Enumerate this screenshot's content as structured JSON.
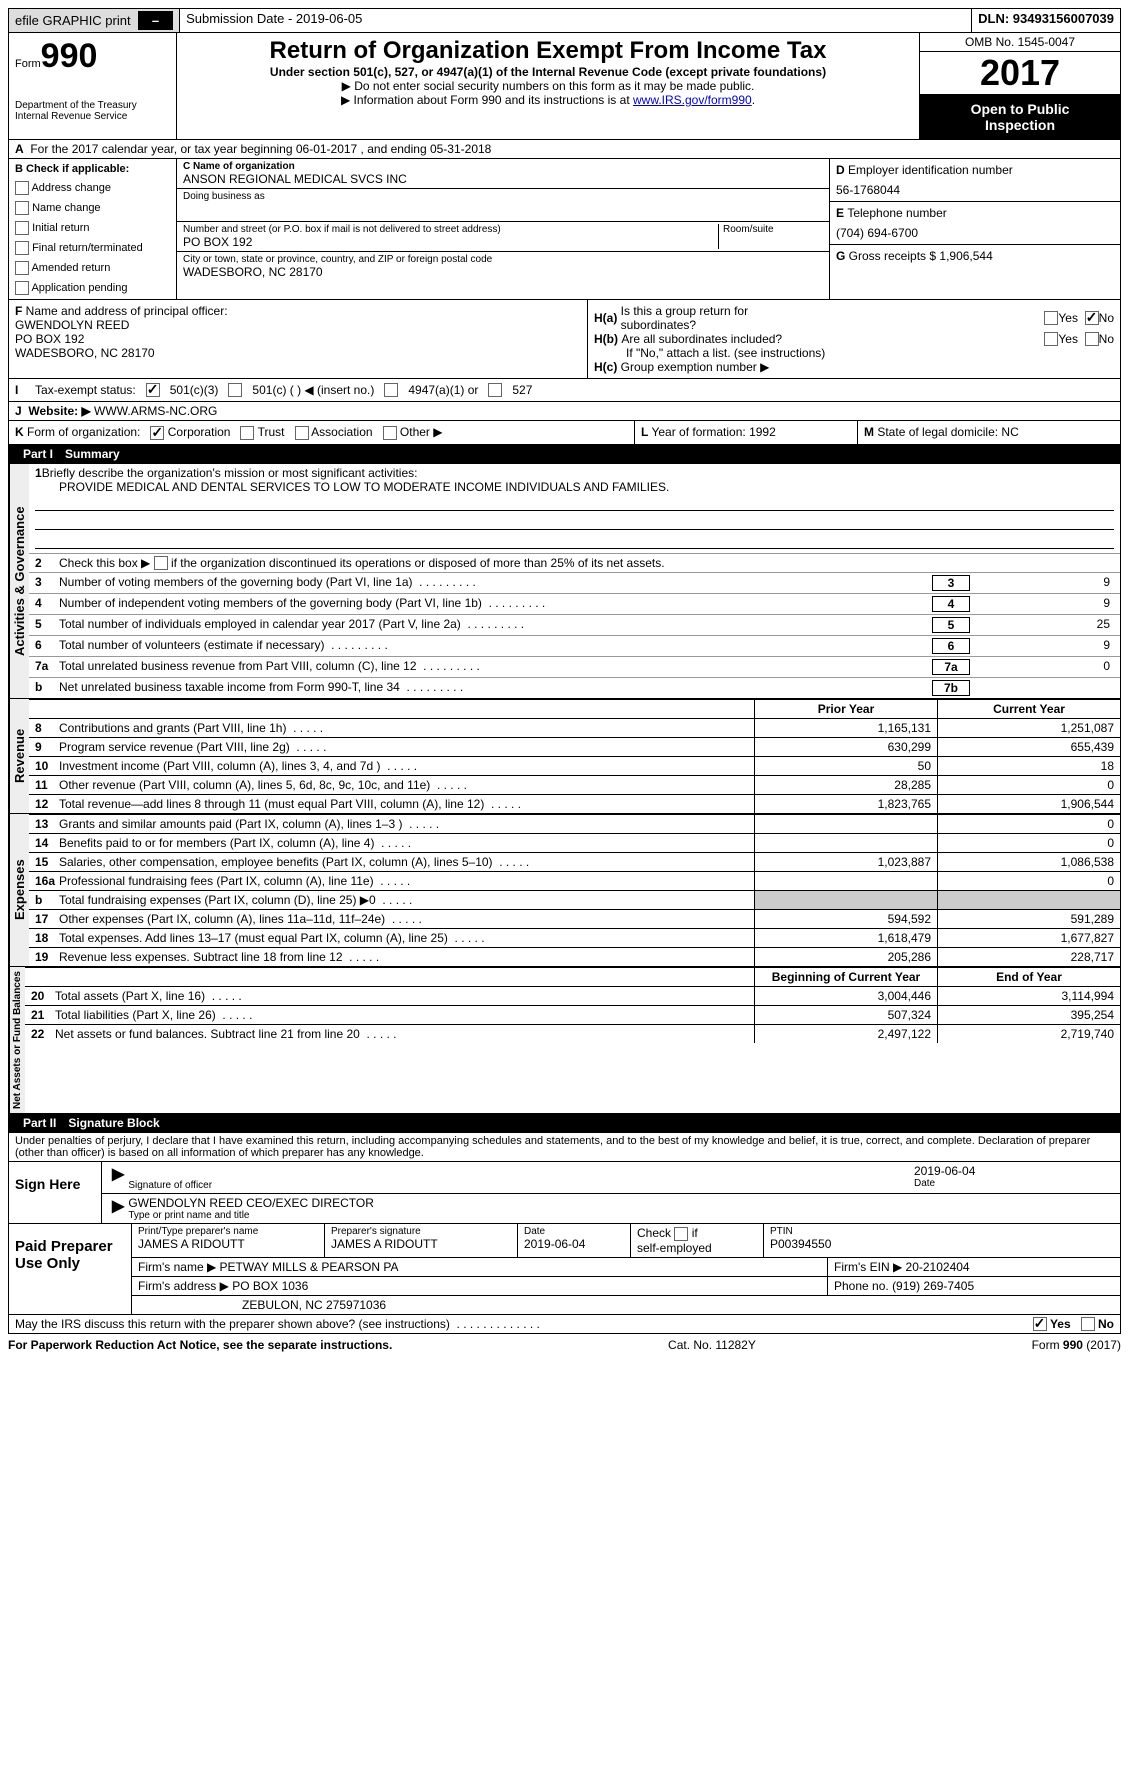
{
  "colors": {
    "black": "#000000",
    "headerBg": "#dddddd",
    "sideBg": "#eeeeee",
    "grey": "#cccccc",
    "link": "#0000cc"
  },
  "top": {
    "efile": "efile GRAPHIC print",
    "submission": "Submission Date - 2019-06-05",
    "dln": "DLN: 93493156007039"
  },
  "hdr": {
    "formWord": "Form",
    "formNo": "990",
    "dept": "Department of the Treasury",
    "irs": "Internal Revenue Service",
    "title": "Return of Organization Exempt From Income Tax",
    "sub": "Under section 501(c), 527, or 4947(a)(1) of the Internal Revenue Code (except private foundations)",
    "note1": "▶ Do not enter social security numbers on this form as it may be made public.",
    "note2": "▶ Information about Form 990 and its instructions is at ",
    "note2link": "www.IRS.gov/form990",
    "note2end": ".",
    "omb": "OMB No. 1545-0047",
    "year": "2017",
    "inspect1": "Open to Public",
    "inspect2": "Inspection"
  },
  "a": {
    "text": "For the 2017 calendar year, or tax year beginning 06-01-2017   , and ending 05-31-2018"
  },
  "b": {
    "hdr": "Check if applicable:",
    "items": [
      "Address change",
      "Name change",
      "Initial return",
      "Final return/terminated",
      "Amended return",
      "Application pending"
    ]
  },
  "c": {
    "orgLabel": "Name of organization",
    "orgName": "ANSON REGIONAL MEDICAL SVCS INC",
    "dba": "Doing business as",
    "addrLabel": "Number and street (or P.O. box if mail is not delivered to street address)",
    "room": "Room/suite",
    "addr": "PO BOX 192",
    "cityLabel": "City or town, state or province, country, and ZIP or foreign postal code",
    "city": "WADESBORO, NC  28170"
  },
  "d": {
    "einLabel": "Employer identification number",
    "ein": "56-1768044",
    "telLabel": "Telephone number",
    "tel": "(704) 694-6700",
    "grossLabel": "Gross receipts $",
    "gross": "1,906,544"
  },
  "f": {
    "label": "Name and address of principal officer:",
    "name": "GWENDOLYN REED",
    "addr": "PO BOX 192",
    "city": "WADESBORO, NC  28170"
  },
  "h": {
    "a": "Is this a group return for",
    "a2": "subordinates?",
    "b": "Are all subordinates included?",
    "bNote": "If \"No,\" attach a list. (see instructions)",
    "c": "Group exemption number ▶",
    "yes": "Yes",
    "no": "No"
  },
  "i": {
    "label": "Tax-exempt status:",
    "opts": [
      "501(c)(3)",
      "501(c) (   ) ◀ (insert no.)",
      "4947(a)(1) or",
      "527"
    ]
  },
  "j": {
    "label": "Website: ▶",
    "val": "WWW.ARMS-NC.ORG"
  },
  "k": {
    "label": "Form of organization:",
    "opts": [
      "Corporation",
      "Trust",
      "Association",
      "Other ▶"
    ],
    "l": "Year of formation: 1992",
    "m": "State of legal domicile: NC"
  },
  "part1": {
    "title": "Part I",
    "name": "Summary",
    "q1": "Briefly describe the organization's mission or most significant activities:",
    "mission": "PROVIDE MEDICAL AND DENTAL SERVICES TO LOW TO MODERATE INCOME INDIVIDUALS AND FAMILIES.",
    "q2": "Check this box ▶",
    "q2b": "if the organization discontinued its operations or disposed of more than 25% of its net assets.",
    "lines": [
      {
        "n": "3",
        "t": "Number of voting members of the governing body (Part VI, line 1a)",
        "b": "3",
        "v": "9"
      },
      {
        "n": "4",
        "t": "Number of independent voting members of the governing body (Part VI, line 1b)",
        "b": "4",
        "v": "9"
      },
      {
        "n": "5",
        "t": "Total number of individuals employed in calendar year 2017 (Part V, line 2a)",
        "b": "5",
        "v": "25"
      },
      {
        "n": "6",
        "t": "Total number of volunteers (estimate if necessary)",
        "b": "6",
        "v": "9"
      },
      {
        "n": "7a",
        "t": "Total unrelated business revenue from Part VIII, column (C), line 12",
        "b": "7a",
        "v": "0"
      },
      {
        "n": "b",
        "t": "Net unrelated business taxable income from Form 990-T, line 34",
        "b": "7b",
        "v": ""
      }
    ],
    "revHdr": {
      "c1": "Prior Year",
      "c2": "Current Year"
    },
    "rev": [
      {
        "n": "8",
        "t": "Contributions and grants (Part VIII, line 1h)",
        "c1": "1,165,131",
        "c2": "1,251,087"
      },
      {
        "n": "9",
        "t": "Program service revenue (Part VIII, line 2g)",
        "c1": "630,299",
        "c2": "655,439"
      },
      {
        "n": "10",
        "t": "Investment income (Part VIII, column (A), lines 3, 4, and 7d )",
        "c1": "50",
        "c2": "18"
      },
      {
        "n": "11",
        "t": "Other revenue (Part VIII, column (A), lines 5, 6d, 8c, 9c, 10c, and 11e)",
        "c1": "28,285",
        "c2": "0"
      },
      {
        "n": "12",
        "t": "Total revenue—add lines 8 through 11 (must equal Part VIII, column (A), line 12)",
        "c1": "1,823,765",
        "c2": "1,906,544"
      }
    ],
    "exp": [
      {
        "n": "13",
        "t": "Grants and similar amounts paid (Part IX, column (A), lines 1–3 )",
        "c1": "",
        "c2": "0"
      },
      {
        "n": "14",
        "t": "Benefits paid to or for members (Part IX, column (A), line 4)",
        "c1": "",
        "c2": "0"
      },
      {
        "n": "15",
        "t": "Salaries, other compensation, employee benefits (Part IX, column (A), lines 5–10)",
        "c1": "1,023,887",
        "c2": "1,086,538"
      },
      {
        "n": "16a",
        "t": "Professional fundraising fees (Part IX, column (A), line 11e)",
        "c1": "",
        "c2": "0"
      },
      {
        "n": "b",
        "t": "Total fundraising expenses (Part IX, column (D), line 25) ▶0",
        "c1": "grey",
        "c2": "grey"
      },
      {
        "n": "17",
        "t": "Other expenses (Part IX, column (A), lines 11a–11d, 11f–24e)",
        "c1": "594,592",
        "c2": "591,289"
      },
      {
        "n": "18",
        "t": "Total expenses. Add lines 13–17 (must equal Part IX, column (A), line 25)",
        "c1": "1,618,479",
        "c2": "1,677,827"
      },
      {
        "n": "19",
        "t": "Revenue less expenses. Subtract line 18 from line 12",
        "c1": "205,286",
        "c2": "228,717"
      }
    ],
    "netHdr": {
      "c1": "Beginning of Current Year",
      "c2": "End of Year"
    },
    "net": [
      {
        "n": "20",
        "t": "Total assets (Part X, line 16)",
        "c1": "3,004,446",
        "c2": "3,114,994"
      },
      {
        "n": "21",
        "t": "Total liabilities (Part X, line 26)",
        "c1": "507,324",
        "c2": "395,254"
      },
      {
        "n": "22",
        "t": "Net assets or fund balances. Subtract line 21 from line 20",
        "c1": "2,497,122",
        "c2": "2,719,740"
      }
    ],
    "sideLabels": {
      "ag": "Activities & Governance",
      "rev": "Revenue",
      "exp": "Expenses",
      "net": "Net Assets or\nFund Balances"
    }
  },
  "part2": {
    "title": "Part II",
    "name": "Signature Block",
    "decl": "Under penalties of perjury, I declare that I have examined this return, including accompanying schedules and statements, and to the best of my knowledge and belief, it is true, correct, and complete. Declaration of preparer (other than officer) is based on all information of which preparer has any knowledge.",
    "sign": "Sign Here",
    "sigLabel": "Signature of officer",
    "date": "2019-06-04",
    "dateLabel": "Date",
    "typed": "GWENDOLYN REED CEO/EXEC DIRECTOR",
    "typedLabel": "Type or print name and title"
  },
  "paid": {
    "title": "Paid Preparer Use Only",
    "r1": {
      "a": "Print/Type preparer's name",
      "av": "JAMES A RIDOUTT",
      "b": "Preparer's signature",
      "bv": "JAMES A RIDOUTT",
      "c": "Date",
      "cv": "2019-06-04",
      "d": "Check",
      "d2": "if",
      "d3": "self-employed",
      "e": "PTIN",
      "ev": "P00394550"
    },
    "r2": {
      "a": "Firm's name      ▶",
      "av": "PETWAY MILLS & PEARSON PA",
      "b": "Firm's EIN ▶",
      "bv": "20-2102404"
    },
    "r3": {
      "a": "Firm's address ▶",
      "av": "PO BOX 1036",
      "b": "Phone no.",
      "bv": "(919) 269-7405"
    },
    "r4": {
      "a": "",
      "av": "ZEBULON, NC  275971036"
    }
  },
  "discuss": {
    "q": "May the IRS discuss this return with the preparer shown above? (see instructions)",
    "yes": "Yes",
    "no": "No"
  },
  "footer": {
    "left": "For Paperwork Reduction Act Notice, see the separate instructions.",
    "mid": "Cat. No. 11282Y",
    "right": "Form 990 (2017)"
  }
}
